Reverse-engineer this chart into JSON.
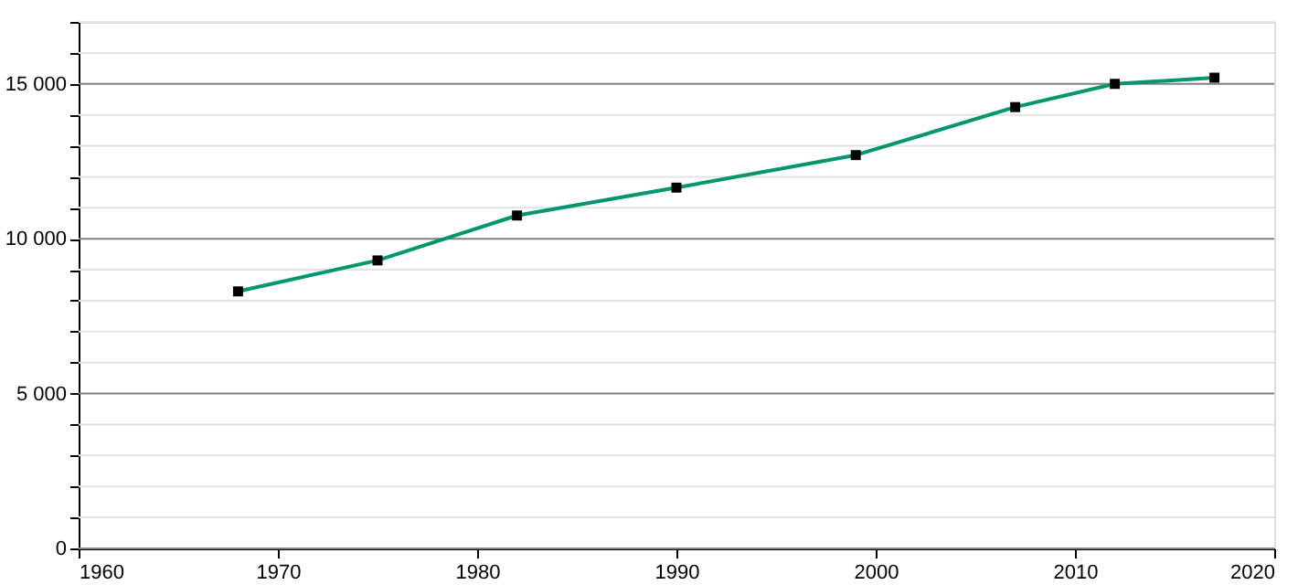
{
  "chart_data": {
    "type": "line",
    "x": [
      1968,
      1975,
      1982,
      1990,
      1999,
      2007,
      2012,
      2017
    ],
    "series": [
      {
        "color": "#00966e",
        "values": [
          8300,
          9300,
          10750,
          11650,
          12700,
          14250,
          15000,
          15200
        ]
      }
    ],
    "marker": "square",
    "line_style": "solid",
    "grid": "y",
    "xlim": [
      1960,
      2020
    ],
    "xticks": [
      1960,
      1970,
      1980,
      1990,
      2000,
      2010,
      2020
    ],
    "ylim": [
      0,
      17000
    ],
    "yticks": [
      0,
      {
        "value": 1000,
        "label": null
      },
      {
        "value": 2000,
        "label": null
      },
      {
        "value": 3000,
        "label": null
      },
      {
        "value": 4000,
        "label": null
      },
      {
        "value": 5000,
        "label": "5 000"
      },
      {
        "value": 6000,
        "label": null
      },
      {
        "value": 7000,
        "label": null
      },
      {
        "value": 8000,
        "label": null
      },
      {
        "value": 9000,
        "label": null
      },
      {
        "value": 10000,
        "label": "10 000"
      },
      {
        "value": 11000,
        "label": null
      },
      {
        "value": 12000,
        "label": null
      },
      {
        "value": 13000,
        "label": null
      },
      {
        "value": 14000,
        "label": null
      },
      {
        "value": 15000,
        "label": "15 000"
      },
      {
        "value": 16000,
        "label": null
      },
      {
        "value": 17000,
        "label": null
      }
    ]
  }
}
